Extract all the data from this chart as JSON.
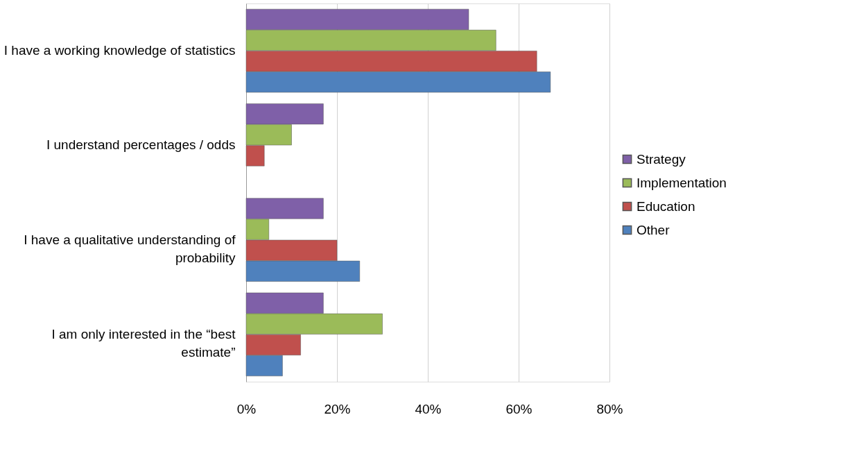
{
  "chart_data": {
    "type": "bar",
    "orientation": "horizontal",
    "categories": [
      "I have a working knowledge of statistics",
      "I understand percentages / odds",
      "I have a qualitative understanding of probability",
      "I am only interested in the “best estimate”"
    ],
    "series": [
      {
        "name": "Strategy",
        "color": "#7f60a8",
        "values": [
          49,
          17,
          17,
          17
        ]
      },
      {
        "name": "Implementation",
        "color": "#9bbb59",
        "values": [
          55,
          10,
          5,
          30
        ]
      },
      {
        "name": "Education",
        "color": "#c0504d",
        "values": [
          64,
          4,
          20,
          12
        ]
      },
      {
        "name": "Other",
        "color": "#4f81bd",
        "values": [
          67,
          null,
          25,
          8
        ]
      }
    ],
    "xlim": [
      0,
      80
    ],
    "xticks": [
      {
        "value": 0,
        "label": "0%"
      },
      {
        "value": 20,
        "label": "20%"
      },
      {
        "value": 40,
        "label": "40%"
      },
      {
        "value": 60,
        "label": "60%"
      },
      {
        "value": 80,
        "label": "80%"
      }
    ],
    "grid": "x",
    "legend": "right"
  }
}
